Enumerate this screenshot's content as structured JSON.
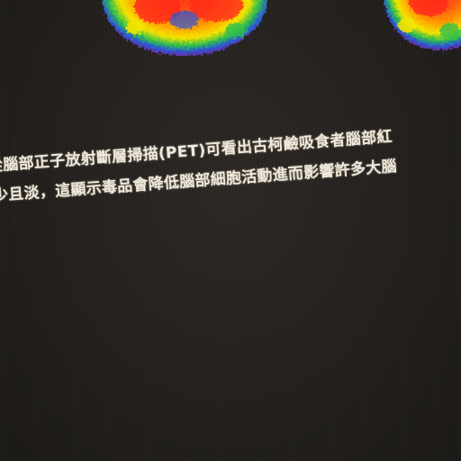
{
  "photo": {
    "subject": "",
    "background_color": "#211f1b",
    "scan_colors": [
      "#ff2a1a",
      "#ff8a00",
      "#f5e400",
      "#2fbf4a",
      "#2a56d8",
      "#7a2fb0"
    ]
  },
  "caption": {
    "line1": "從腦部正子放射斷層掃描(PET)可看出古柯鹼吸食者腦部紅",
    "line2": "少且淡，這顯示毒品會降低腦部細胞活動進而影響許多大腦"
  }
}
